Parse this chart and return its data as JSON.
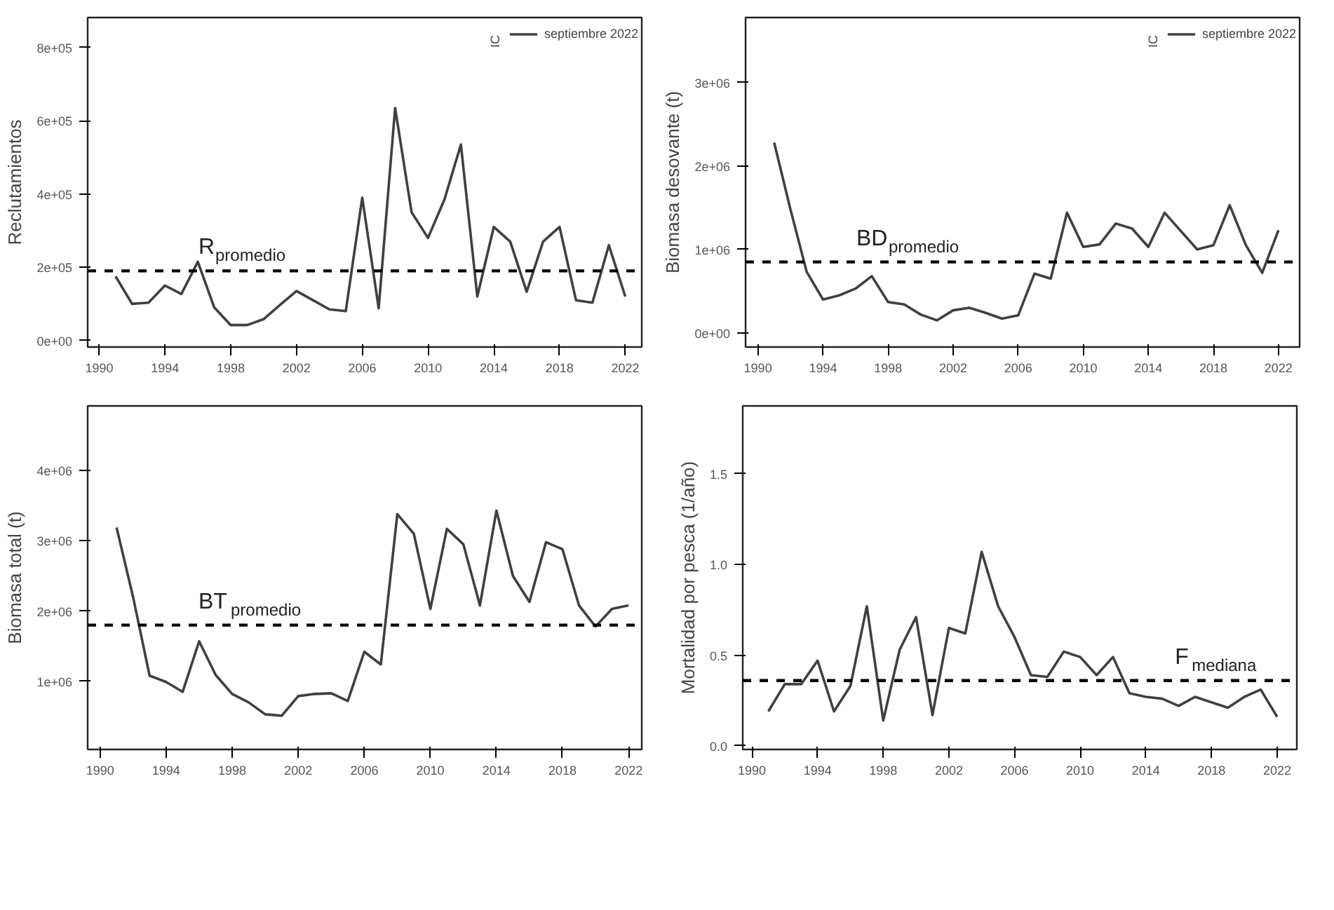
{
  "chart_data": [
    {
      "type": "line",
      "legend": "top right",
      "legend_title": "IC",
      "ylabel": "Reclutamientos",
      "x": [
        1991,
        1992,
        1993,
        1994,
        1995,
        1996,
        1997,
        1998,
        1999,
        2000,
        2001,
        2002,
        2003,
        2004,
        2005,
        2006,
        2007,
        2008,
        2009,
        2010,
        2011,
        2012,
        2013,
        2014,
        2015,
        2016,
        2017,
        2018,
        2019,
        2020,
        2021,
        2022
      ],
      "series": [
        {
          "name": "septiembre 2022",
          "color": "#404040",
          "values": [
            175000,
            100000,
            103000,
            150000,
            127000,
            215000,
            90000,
            42000,
            42000,
            58000,
            97000,
            135000,
            110000,
            85000,
            80000,
            390000,
            88000,
            635000,
            350000,
            280000,
            385000,
            535000,
            120000,
            310000,
            270000,
            133000,
            270000,
            310000,
            110000,
            103000,
            260000,
            120000
          ]
        }
      ],
      "xlim": [
        1989.3,
        2023.0
      ],
      "xticks": [
        1990,
        1994,
        1998,
        2002,
        2006,
        2010,
        2014,
        2018,
        2022
      ],
      "ylim": [
        -18000,
        882000
      ],
      "yticks": [
        {
          "value": 0,
          "label": "0e+00"
        },
        {
          "value": 200000,
          "label": "2e+05"
        },
        {
          "value": 400000,
          "label": "4e+05"
        },
        {
          "value": 600000,
          "label": "6e+05"
        },
        {
          "value": 800000,
          "label": "8e+05"
        }
      ],
      "ref_lines": [
        {
          "axis": "y",
          "value": 190000,
          "line_style": "dashed",
          "color": "#000000",
          "label": "R$_{promedio}$"
        }
      ]
    },
    {
      "type": "line",
      "legend": "top right",
      "legend_title": "IC",
      "ylabel": "Biomasa desovante (t)",
      "x": [
        1991,
        1992,
        1993,
        1994,
        1995,
        1996,
        1997,
        1998,
        1999,
        2000,
        2001,
        2002,
        2003,
        2004,
        2005,
        2006,
        2007,
        2008,
        2009,
        2010,
        2011,
        2012,
        2013,
        2014,
        2015,
        2016,
        2017,
        2018,
        2019,
        2020,
        2021,
        2022
      ],
      "series": [
        {
          "name": "septiembre 2022",
          "color": "#404040",
          "values": [
            2280000,
            1480000,
            730000,
            400000,
            450000,
            530000,
            680000,
            370000,
            340000,
            220000,
            150000,
            270000,
            300000,
            240000,
            170000,
            210000,
            710000,
            650000,
            1440000,
            1030000,
            1060000,
            1310000,
            1250000,
            1030000,
            1440000,
            1220000,
            1000000,
            1050000,
            1530000,
            1050000,
            720000,
            1230000
          ]
        }
      ],
      "xlim": [
        1989.24,
        2023.3
      ],
      "xticks": [
        1990,
        1994,
        1998,
        2002,
        2006,
        2010,
        2014,
        2018,
        2022
      ],
      "ylim": [
        -170000,
        3780000
      ],
      "yticks": [
        {
          "value": 0,
          "label": "0e+00"
        },
        {
          "value": 1000000,
          "label": "1e+06"
        },
        {
          "value": 2000000,
          "label": "2e+06"
        },
        {
          "value": 3000000,
          "label": "3e+06"
        }
      ],
      "ref_lines": [
        {
          "axis": "y",
          "value": 850000,
          "line_style": "dashed",
          "color": "#000000",
          "label": "BD$_{promedio}$"
        }
      ]
    },
    {
      "type": "line",
      "ylabel": "Biomasa total (t)",
      "x": [
        1991,
        1992,
        1993,
        1994,
        1995,
        1996,
        1997,
        1998,
        1999,
        2000,
        2001,
        2002,
        2003,
        2004,
        2005,
        2006,
        2007,
        2008,
        2009,
        2010,
        2011,
        2012,
        2013,
        2014,
        2015,
        2016,
        2017,
        2018,
        2019,
        2020,
        2021,
        2022
      ],
      "series": [
        {
          "color": "#404040",
          "values": [
            3190000,
            2200000,
            1080000,
            990000,
            850000,
            1570000,
            1090000,
            820000,
            700000,
            530000,
            510000,
            790000,
            820000,
            830000,
            720000,
            1420000,
            1240000,
            3380000,
            3100000,
            2030000,
            3170000,
            2950000,
            2080000,
            3430000,
            2500000,
            2130000,
            2980000,
            2880000,
            2080000,
            1780000,
            2030000,
            2080000
          ]
        }
      ],
      "xlim": [
        1989.25,
        2022.8
      ],
      "xticks": [
        1990,
        1994,
        1998,
        2002,
        2006,
        2010,
        2014,
        2018,
        2022
      ],
      "ylim": [
        30000,
        4920000
      ],
      "yticks": [
        {
          "value": 1000000,
          "label": "1e+06"
        },
        {
          "value": 2000000,
          "label": "2e+06"
        },
        {
          "value": 3000000,
          "label": "3e+06"
        },
        {
          "value": 4000000,
          "label": "4e+06"
        }
      ],
      "ref_lines": [
        {
          "axis": "y",
          "value": 1800000,
          "line_style": "dashed",
          "color": "#000000",
          "label": "BT$_{promedio}$"
        }
      ]
    },
    {
      "type": "line",
      "ylabel": "Mortalidad por pesca (1/año)",
      "x": [
        1991,
        1992,
        1993,
        1994,
        1995,
        1996,
        1997,
        1998,
        1999,
        2000,
        2001,
        2002,
        2003,
        2004,
        2005,
        2006,
        2007,
        2008,
        2009,
        2010,
        2011,
        2012,
        2013,
        2014,
        2015,
        2016,
        2017,
        2018,
        2019,
        2020,
        2021,
        2022
      ],
      "series": [
        {
          "color": "#404040",
          "values": [
            0.19,
            0.34,
            0.34,
            0.47,
            0.19,
            0.33,
            0.77,
            0.14,
            0.53,
            0.71,
            0.17,
            0.65,
            0.62,
            1.07,
            0.77,
            0.6,
            0.39,
            0.38,
            0.52,
            0.49,
            0.39,
            0.49,
            0.29,
            0.27,
            0.26,
            0.22,
            0.27,
            0.24,
            0.21,
            0.27,
            0.31,
            0.16
          ]
        }
      ],
      "xlim": [
        1989.44,
        2023.2
      ],
      "xticks": [
        1990,
        1994,
        1998,
        2002,
        2006,
        2010,
        2014,
        2018,
        2022
      ],
      "ylim": [
        -0.02,
        1.875
      ],
      "yticks": [
        {
          "value": 0,
          "label": "0.0"
        },
        {
          "value": 0.5,
          "label": "0.5"
        },
        {
          "value": 1.0,
          "label": "1.0"
        },
        {
          "value": 1.5,
          "label": "1.5"
        }
      ],
      "ref_lines": [
        {
          "axis": "y",
          "value": 0.36,
          "line_style": "dashed",
          "color": "#000000",
          "label": "F$_{mediana}$"
        }
      ]
    }
  ]
}
